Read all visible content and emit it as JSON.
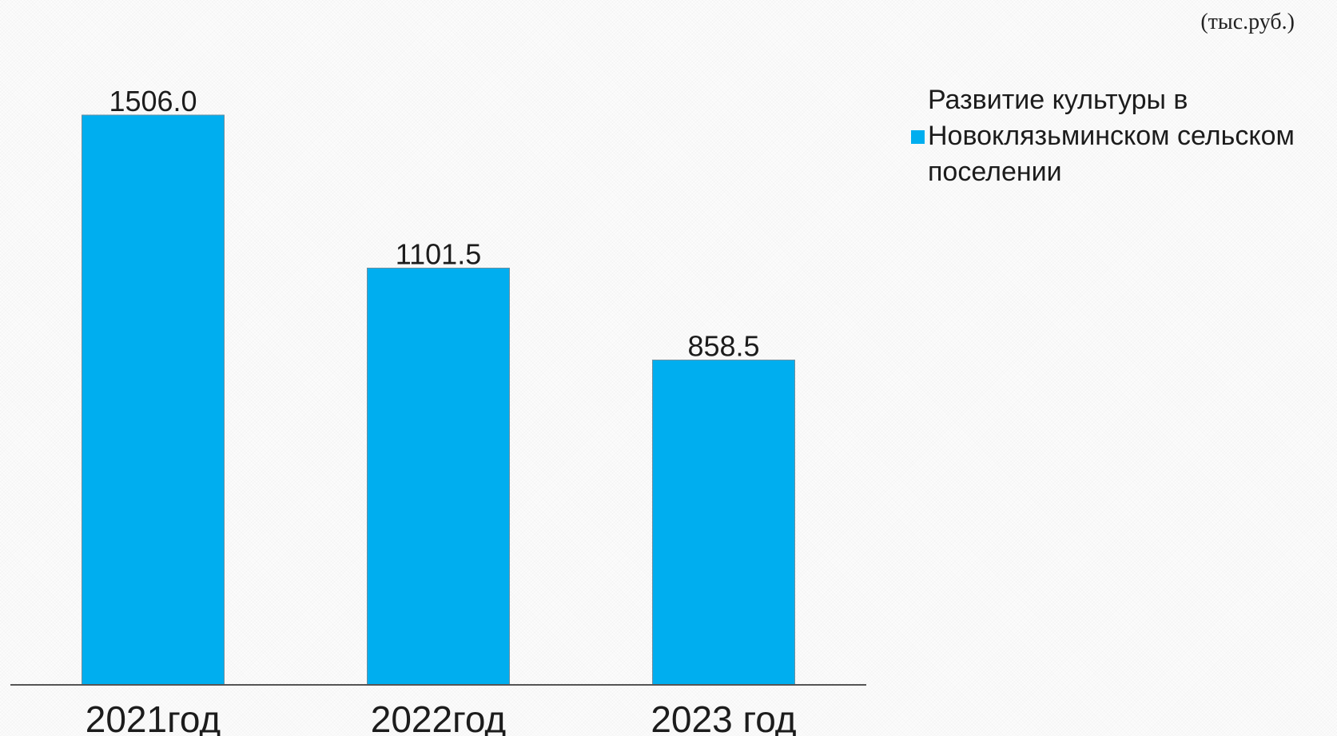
{
  "unit_label": "(тыс.руб.)",
  "colors": {
    "bar": "#00aeef",
    "bar_stroke": "#6d8fa0",
    "axis": "#555555",
    "text": "#1c1c1c"
  },
  "legend": {
    "label": "Развитие культуры в\nНовоклязьминском сельском\nпоселении",
    "placement": "right"
  },
  "chart_data": {
    "type": "bar",
    "categories": [
      "2021год",
      "2022год",
      "2023 год"
    ],
    "series": [
      {
        "name": "Развитие культуры в Новоклязьминском сельском поселении",
        "values": [
          1506.0,
          1101.5,
          858.5
        ],
        "value_labels": [
          "1506.0",
          "1101.5",
          "858.5"
        ]
      }
    ],
    "ylim": [
      0,
      1506.0
    ],
    "grid": false,
    "title": "",
    "xlabel": "",
    "ylabel": ""
  }
}
